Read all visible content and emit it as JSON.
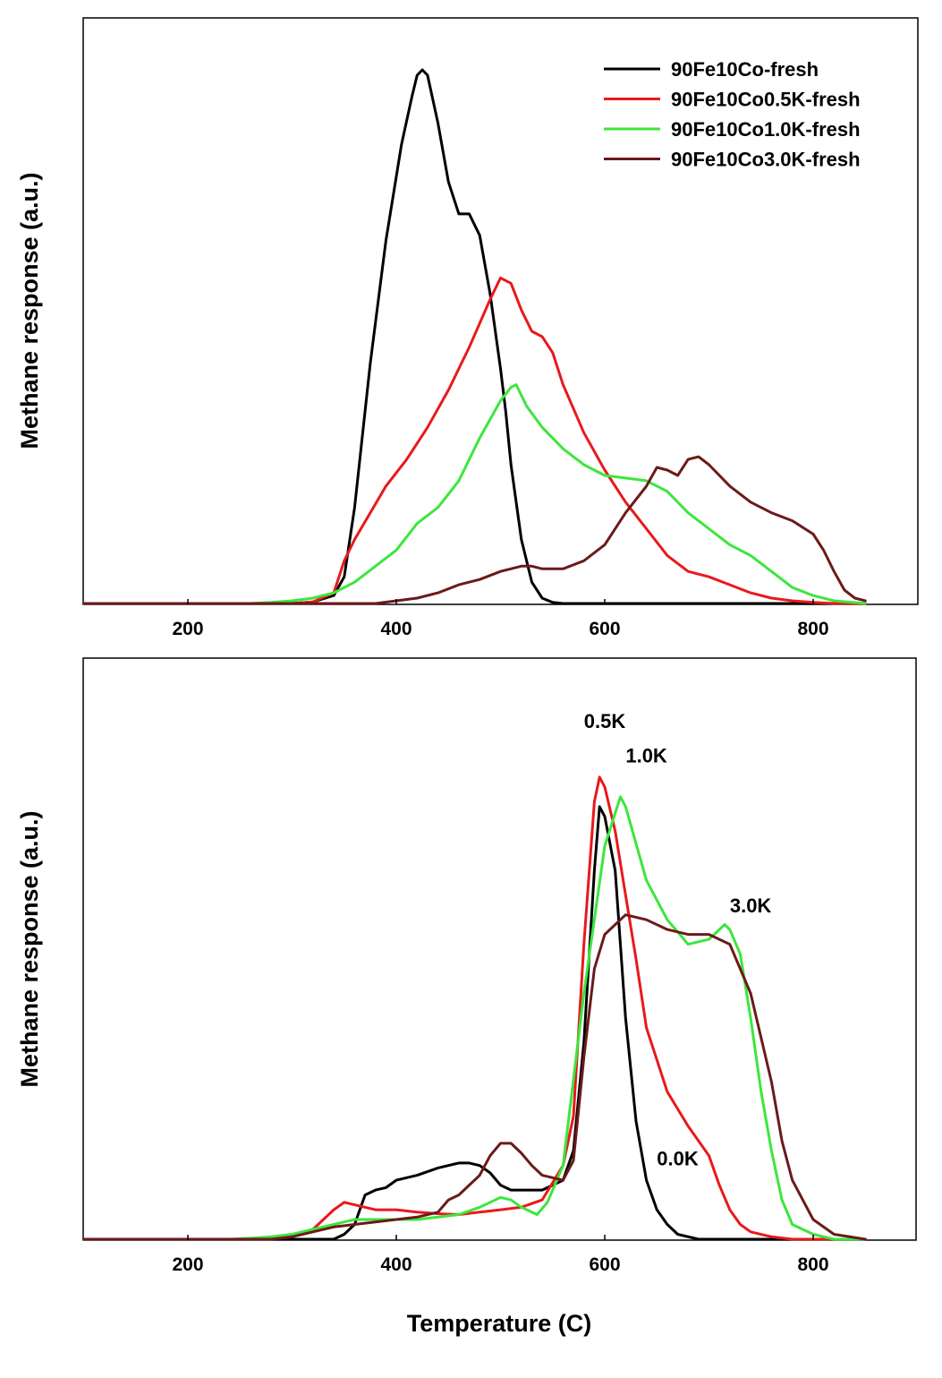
{
  "chart_data": [
    {
      "type": "line",
      "title": "",
      "xlabel": "",
      "ylabel": "Methane response (a.u.)",
      "xlim": [
        100,
        900
      ],
      "ylim": [
        0,
        100
      ],
      "xticks": [
        200,
        400,
        600,
        800
      ],
      "xtick_labels": [
        "200",
        "400",
        "600",
        "800"
      ],
      "legend": "top-right",
      "grid": false,
      "series": [
        {
          "name": "90Fe10Co-fresh",
          "color": "#000000",
          "points": [
            [
              100,
              0
            ],
            [
              300,
              0
            ],
            [
              320,
              0.3
            ],
            [
              340,
              1.5
            ],
            [
              350,
              5
            ],
            [
              360,
              18
            ],
            [
              375,
              45
            ],
            [
              390,
              68
            ],
            [
              405,
              86
            ],
            [
              415,
              95
            ],
            [
              420,
              99
            ],
            [
              425,
              100
            ],
            [
              430,
              99
            ],
            [
              440,
              90
            ],
            [
              450,
              79
            ],
            [
              460,
              73
            ],
            [
              470,
              73
            ],
            [
              480,
              69
            ],
            [
              490,
              58
            ],
            [
              500,
              44
            ],
            [
              505,
              36
            ],
            [
              510,
              26
            ],
            [
              520,
              12
            ],
            [
              530,
              4
            ],
            [
              540,
              1
            ],
            [
              550,
              0.2
            ],
            [
              560,
              0
            ],
            [
              850,
              0
            ]
          ]
        },
        {
          "name": "90Fe10Co0.5K-fresh",
          "color": "#e8191c",
          "points": [
            [
              100,
              0
            ],
            [
              300,
              0
            ],
            [
              320,
              0.3
            ],
            [
              340,
              2
            ],
            [
              350,
              8
            ],
            [
              360,
              12
            ],
            [
              375,
              17
            ],
            [
              390,
              22
            ],
            [
              410,
              27
            ],
            [
              430,
              33
            ],
            [
              450,
              40
            ],
            [
              470,
              48
            ],
            [
              490,
              57
            ],
            [
              500,
              61
            ],
            [
              510,
              60
            ],
            [
              520,
              55
            ],
            [
              530,
              51
            ],
            [
              540,
              50
            ],
            [
              550,
              47
            ],
            [
              560,
              41
            ],
            [
              580,
              32
            ],
            [
              600,
              25
            ],
            [
              620,
              19
            ],
            [
              640,
              14
            ],
            [
              660,
              9
            ],
            [
              680,
              6
            ],
            [
              700,
              5
            ],
            [
              720,
              3.5
            ],
            [
              740,
              2
            ],
            [
              760,
              1
            ],
            [
              780,
              0.5
            ],
            [
              800,
              0.2
            ],
            [
              820,
              0
            ],
            [
              850,
              0
            ]
          ]
        },
        {
          "name": "90Fe10Co1.0K-fresh",
          "color": "#3de63d",
          "points": [
            [
              100,
              0
            ],
            [
              260,
              0
            ],
            [
              280,
              0.2
            ],
            [
              300,
              0.5
            ],
            [
              320,
              1
            ],
            [
              340,
              2
            ],
            [
              360,
              4
            ],
            [
              380,
              7
            ],
            [
              400,
              10
            ],
            [
              420,
              15
            ],
            [
              440,
              18
            ],
            [
              460,
              23
            ],
            [
              480,
              31
            ],
            [
              500,
              38
            ],
            [
              510,
              40.5
            ],
            [
              515,
              41
            ],
            [
              525,
              37
            ],
            [
              540,
              33
            ],
            [
              560,
              29
            ],
            [
              580,
              26
            ],
            [
              600,
              24
            ],
            [
              620,
              23.5
            ],
            [
              640,
              23
            ],
            [
              660,
              21
            ],
            [
              680,
              17
            ],
            [
              700,
              14
            ],
            [
              720,
              11
            ],
            [
              740,
              9
            ],
            [
              760,
              6
            ],
            [
              780,
              3
            ],
            [
              800,
              1.5
            ],
            [
              820,
              0.5
            ],
            [
              850,
              0
            ]
          ]
        },
        {
          "name": "90Fe10Co3.0K-fresh",
          "color": "#6b1a1a",
          "points": [
            [
              100,
              0
            ],
            [
              380,
              0
            ],
            [
              400,
              0.5
            ],
            [
              420,
              1
            ],
            [
              440,
              2
            ],
            [
              460,
              3.5
            ],
            [
              480,
              4.5
            ],
            [
              500,
              6
            ],
            [
              520,
              7
            ],
            [
              530,
              7
            ],
            [
              540,
              6.5
            ],
            [
              560,
              6.5
            ],
            [
              580,
              8
            ],
            [
              600,
              11
            ],
            [
              620,
              17
            ],
            [
              640,
              22
            ],
            [
              650,
              25.5
            ],
            [
              660,
              25
            ],
            [
              670,
              24
            ],
            [
              680,
              27
            ],
            [
              690,
              27.5
            ],
            [
              700,
              26
            ],
            [
              720,
              22
            ],
            [
              740,
              19
            ],
            [
              760,
              17
            ],
            [
              780,
              15.5
            ],
            [
              800,
              13
            ],
            [
              810,
              10
            ],
            [
              820,
              6
            ],
            [
              830,
              2.5
            ],
            [
              840,
              1
            ],
            [
              850,
              0.5
            ]
          ]
        }
      ]
    },
    {
      "type": "line",
      "title": "",
      "xlabel": "Temperature (C)",
      "ylabel": "Methane response (a.u.)",
      "xlim": [
        100,
        900
      ],
      "ylim": [
        0,
        100
      ],
      "xticks": [
        200,
        400,
        600,
        800
      ],
      "xtick_labels": [
        "200",
        "400",
        "600",
        "800"
      ],
      "grid": false,
      "annotations": [
        {
          "text": "0.5K",
          "x": 600,
          "y": 104
        },
        {
          "text": "1.0K",
          "x": 640,
          "y": 97
        },
        {
          "text": "3.0K",
          "x": 740,
          "y": 66.5
        },
        {
          "text": "0.0K",
          "x": 670,
          "y": 15
        }
      ],
      "series": [
        {
          "name": "0.0K",
          "color": "#000000",
          "points": [
            [
              100,
              0
            ],
            [
              340,
              0
            ],
            [
              350,
              1
            ],
            [
              360,
              3
            ],
            [
              370,
              9
            ],
            [
              380,
              10
            ],
            [
              390,
              10.5
            ],
            [
              400,
              12
            ],
            [
              420,
              13
            ],
            [
              440,
              14.5
            ],
            [
              460,
              15.5
            ],
            [
              470,
              15.5
            ],
            [
              480,
              15
            ],
            [
              490,
              13.5
            ],
            [
              500,
              11
            ],
            [
              510,
              10
            ],
            [
              520,
              10
            ],
            [
              540,
              10
            ],
            [
              560,
              12
            ],
            [
              570,
              18
            ],
            [
              580,
              40
            ],
            [
              590,
              75
            ],
            [
              595,
              88
            ],
            [
              600,
              86
            ],
            [
              610,
              75
            ],
            [
              620,
              45
            ],
            [
              630,
              24
            ],
            [
              640,
              12
            ],
            [
              650,
              6
            ],
            [
              660,
              3
            ],
            [
              670,
              1
            ],
            [
              690,
              0
            ],
            [
              850,
              0
            ]
          ]
        },
        {
          "name": "0.5K",
          "color": "#e8191c",
          "points": [
            [
              100,
              0
            ],
            [
              260,
              0
            ],
            [
              300,
              0.5
            ],
            [
              320,
              2
            ],
            [
              340,
              6
            ],
            [
              350,
              7.5
            ],
            [
              360,
              7
            ],
            [
              380,
              6
            ],
            [
              390,
              6
            ],
            [
              400,
              6
            ],
            [
              420,
              5.5
            ],
            [
              440,
              5.2
            ],
            [
              460,
              5
            ],
            [
              480,
              5.5
            ],
            [
              500,
              6
            ],
            [
              520,
              6.5
            ],
            [
              540,
              8
            ],
            [
              560,
              15
            ],
            [
              570,
              25
            ],
            [
              580,
              60
            ],
            [
              590,
              89
            ],
            [
              595,
              94
            ],
            [
              600,
              92
            ],
            [
              610,
              83
            ],
            [
              620,
              70
            ],
            [
              630,
              57
            ],
            [
              640,
              43
            ],
            [
              660,
              30
            ],
            [
              680,
              23
            ],
            [
              700,
              17
            ],
            [
              710,
              11
            ],
            [
              720,
              6
            ],
            [
              730,
              3
            ],
            [
              740,
              1.5
            ],
            [
              760,
              0.5
            ],
            [
              780,
              0
            ],
            [
              850,
              0
            ]
          ]
        },
        {
          "name": "1.0K",
          "color": "#3de63d",
          "points": [
            [
              100,
              0
            ],
            [
              240,
              0
            ],
            [
              260,
              0.2
            ],
            [
              280,
              0.5
            ],
            [
              300,
              1
            ],
            [
              320,
              2
            ],
            [
              340,
              3
            ],
            [
              360,
              4
            ],
            [
              400,
              4
            ],
            [
              420,
              4
            ],
            [
              440,
              4.5
            ],
            [
              460,
              5
            ],
            [
              480,
              6.5
            ],
            [
              500,
              8.5
            ],
            [
              510,
              8
            ],
            [
              520,
              6.5
            ],
            [
              535,
              5
            ],
            [
              545,
              7.5
            ],
            [
              560,
              15
            ],
            [
              580,
              50
            ],
            [
              600,
              80
            ],
            [
              615,
              90
            ],
            [
              620,
              88
            ],
            [
              640,
              73
            ],
            [
              660,
              65
            ],
            [
              680,
              60
            ],
            [
              700,
              61
            ],
            [
              715,
              64
            ],
            [
              720,
              63
            ],
            [
              730,
              58
            ],
            [
              740,
              45
            ],
            [
              750,
              30
            ],
            [
              760,
              18
            ],
            [
              770,
              8
            ],
            [
              780,
              3
            ],
            [
              800,
              1
            ],
            [
              820,
              0
            ],
            [
              850,
              0
            ]
          ]
        },
        {
          "name": "3.0K",
          "color": "#6b1a1a",
          "points": [
            [
              100,
              0
            ],
            [
              280,
              0
            ],
            [
              300,
              0.5
            ],
            [
              320,
              1.5
            ],
            [
              340,
              2.5
            ],
            [
              360,
              3
            ],
            [
              380,
              3.5
            ],
            [
              400,
              4
            ],
            [
              420,
              4.5
            ],
            [
              440,
              5.5
            ],
            [
              450,
              8
            ],
            [
              460,
              9
            ],
            [
              470,
              11
            ],
            [
              480,
              13
            ],
            [
              490,
              17
            ],
            [
              500,
              19.5
            ],
            [
              510,
              19.5
            ],
            [
              520,
              17.5
            ],
            [
              530,
              15
            ],
            [
              540,
              13
            ],
            [
              560,
              12
            ],
            [
              570,
              16
            ],
            [
              580,
              37
            ],
            [
              590,
              55
            ],
            [
              600,
              62
            ],
            [
              620,
              66
            ],
            [
              640,
              65
            ],
            [
              660,
              63
            ],
            [
              680,
              62
            ],
            [
              700,
              62
            ],
            [
              720,
              60
            ],
            [
              740,
              50
            ],
            [
              760,
              32
            ],
            [
              770,
              20
            ],
            [
              780,
              12
            ],
            [
              800,
              4
            ],
            [
              820,
              1
            ],
            [
              850,
              0
            ]
          ]
        }
      ]
    }
  ]
}
